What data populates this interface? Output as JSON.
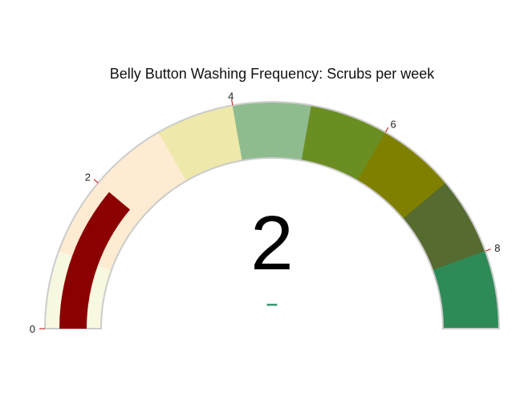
{
  "chart_data": {
    "type": "gauge",
    "title": "Belly Button Washing Frequency: Scrubs per week",
    "value": 2,
    "value_label": "2",
    "delta_label": "–",
    "range": [
      0,
      9
    ],
    "ticks": [
      {
        "value": 0,
        "label": "0"
      },
      {
        "value": 2,
        "label": "2"
      },
      {
        "value": 4,
        "label": "4"
      },
      {
        "value": 6,
        "label": "6"
      },
      {
        "value": 8,
        "label": "8"
      }
    ],
    "steps": [
      {
        "range": [
          0,
          1
        ],
        "color": "#f8f8e0"
      },
      {
        "range": [
          1,
          2
        ],
        "color": "#fdebd2"
      },
      {
        "range": [
          2,
          3
        ],
        "color": "#fdebd2"
      },
      {
        "range": [
          3,
          4
        ],
        "color": "#eee8aa"
      },
      {
        "range": [
          4,
          5
        ],
        "color": "#8fbc8f"
      },
      {
        "range": [
          5,
          6
        ],
        "color": "#6b8e23"
      },
      {
        "range": [
          6,
          7
        ],
        "color": "#808000"
      },
      {
        "range": [
          7,
          8
        ],
        "color": "#556b2f"
      },
      {
        "range": [
          8,
          9
        ],
        "color": "#2e8b57"
      }
    ],
    "bar_color": "#8b0000",
    "delta_color": "#3d9970",
    "border_color": "#cccccc",
    "tick_color": "#cc0000"
  }
}
